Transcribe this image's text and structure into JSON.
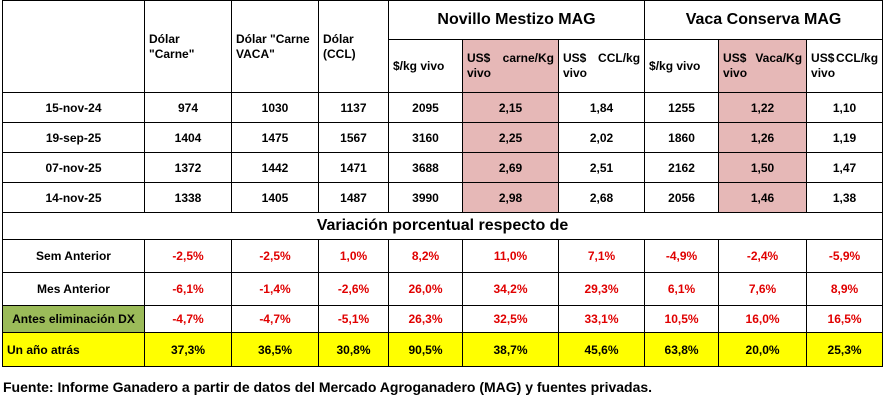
{
  "headers": {
    "dolar_carne": "Dólar \"Carne\"",
    "dolar_vaca": "Dólar \"Carne VACA\"",
    "dolar_ccl": "Dólar (CCL)",
    "novillo_title": "Novillo  Mestizo MAG",
    "vaca_title": "Vaca Conserva MAG",
    "kg_vivo": "$/kg vivo",
    "usd_carne_a": "US$",
    "usd_carne_b": "carne/Kg",
    "usd_carne_c": "vivo",
    "usd_ccl_a": "US$",
    "usd_ccl_b": "CCL/kg",
    "usd_ccl_c": "vivo",
    "usd_vaca_a": "US$",
    "usd_vaca_b": "Vaca/Kg",
    "usd_vaca_c": "vivo"
  },
  "rows": [
    {
      "date": "15-nov-24",
      "c1": "974",
      "c2": "1030",
      "c3": "1137",
      "c4": "2095",
      "c5": "2,15",
      "c6": "1,84",
      "c7": "1255",
      "c8": "1,22",
      "c9": "1,10"
    },
    {
      "date": "19-sep-25",
      "c1": "1404",
      "c2": "1475",
      "c3": "1567",
      "c4": "3160",
      "c5": "2,25",
      "c6": "2,02",
      "c7": "1860",
      "c8": "1,26",
      "c9": "1,19"
    },
    {
      "date": "07-nov-25",
      "c1": "1372",
      "c2": "1442",
      "c3": "1471",
      "c4": "3688",
      "c5": "2,69",
      "c6": "2,51",
      "c7": "2162",
      "c8": "1,50",
      "c9": "1,47"
    },
    {
      "date": "14-nov-25",
      "c1": "1338",
      "c2": "1405",
      "c3": "1487",
      "c4": "3990",
      "c5": "2,98",
      "c6": "2,68",
      "c7": "2056",
      "c8": "1,46",
      "c9": "1,38"
    }
  ],
  "variation_title": "Variación porcentual respecto de",
  "variations": [
    {
      "label": "Sem Anterior",
      "c1": "-2,5%",
      "c2": "-2,5%",
      "c3": "1,0%",
      "c4": "8,2%",
      "c5": "11,0%",
      "c6": "7,1%",
      "c7": "-4,9%",
      "c8": "-2,4%",
      "c9": "-5,9%"
    },
    {
      "label": "Mes Anterior",
      "c1": "-6,1%",
      "c2": "-1,4%",
      "c3": "-2,6%",
      "c4": "26,0%",
      "c5": "34,2%",
      "c6": "29,3%",
      "c7": "6,1%",
      "c8": "7,6%",
      "c9": "8,9%"
    },
    {
      "label": "Antes eliminación DX",
      "c1": "-4,7%",
      "c2": "-4,7%",
      "c3": "-5,1%",
      "c4": "26,3%",
      "c5": "32,5%",
      "c6": "33,1%",
      "c7": "10,5%",
      "c8": "16,0%",
      "c9": "16,5%"
    },
    {
      "label": "Un año atrás",
      "c1": "37,3%",
      "c2": "36,5%",
      "c3": "30,8%",
      "c4": "90,5%",
      "c5": "38,7%",
      "c6": "45,6%",
      "c7": "63,8%",
      "c8": "20,0%",
      "c9": "25,3%"
    }
  ],
  "source": "Fuente: Informe Ganadero a partir de datos del Mercado Agroganadero (MAG) y fuentes privadas.",
  "colors": {
    "pink": "#e6b8b7",
    "green": "#9bbb59",
    "yellow": "#ffff00",
    "negative": "#e00000"
  }
}
